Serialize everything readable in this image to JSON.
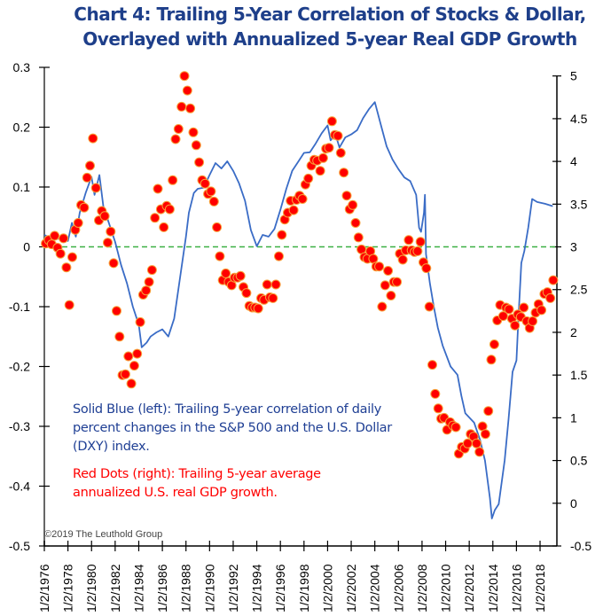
{
  "chart_data": {
    "type": "line+scatter (dual axis)",
    "title": [
      "Chart 4: Trailing 5-Year Correlation of Stocks & Dollar,",
      "Overlayed with Annualized 5-year Real GDP Growth"
    ],
    "annotations": {
      "blue_note": "Solid Blue (left): Trailing 5-year correlation of daily percent changes in the S&P 500 and the U.S. Dollar (DXY) index.",
      "red_note": "Red Dots (right): Trailing 5-year average annualized U.S. real GDP growth.",
      "copyright": "©2019 The Leuthold Group"
    },
    "x_ticks": [
      "1/2/1976",
      "1/2/1978",
      "1/2/1980",
      "1/2/1982",
      "1/2/1984",
      "1/2/1986",
      "1/2/1988",
      "1/2/1990",
      "1/2/1992",
      "1/2/1994",
      "1/2/1996",
      "1/2/1998",
      "1/2/2000",
      "1/2/2002",
      "1/2/2004",
      "1/2/2006",
      "1/2/2008",
      "1/2/2010",
      "1/2/2012",
      "1/2/2014",
      "1/2/2016",
      "1/2/2018"
    ],
    "y_left": {
      "ylim": [
        -0.5,
        0.3
      ],
      "ticks": [
        "0.3",
        "0.2",
        "0.1",
        "0",
        "-0.1",
        "-0.2",
        "-0.3",
        "-0.4",
        "-0.5"
      ]
    },
    "y_right": {
      "ylim": [
        -0.5,
        5
      ],
      "ticks": [
        "5",
        "4.5",
        "4",
        "3.5",
        "3",
        "2.5",
        "2",
        "1.5",
        "1",
        "0.5",
        "0",
        "-0.5"
      ]
    },
    "reference_line": {
      "axis": "left",
      "value": 0,
      "style": "dashed",
      "color": "#3cb043"
    },
    "colors": {
      "line": "#3a6cc6",
      "dots": "#ff0000",
      "dot_edge": "#f7a23a",
      "title": "#1e3f8a"
    },
    "series": [
      {
        "axis": "left",
        "kind": "line",
        "points": [
          [
            "1976-01",
            0.02
          ],
          [
            "1976-07",
            0.015
          ],
          [
            "1977-01",
            0.013
          ],
          [
            "1977-07",
            0.015
          ],
          [
            "1978-01",
            0.01
          ],
          [
            "1978-05",
            0.04
          ],
          [
            "1978-09",
            0.017
          ],
          [
            "1979-01",
            0.057
          ],
          [
            "1979-07",
            0.09
          ],
          [
            "1980-01",
            0.117
          ],
          [
            "1980-04",
            0.087
          ],
          [
            "1980-09",
            0.12
          ],
          [
            "1981-01",
            0.068
          ],
          [
            "1981-07",
            0.038
          ],
          [
            "1982-01",
            0.008
          ],
          [
            "1982-07",
            -0.03
          ],
          [
            "1983-01",
            -0.061
          ],
          [
            "1983-07",
            -0.1
          ],
          [
            "1984-01",
            -0.13
          ],
          [
            "1984-04",
            -0.168
          ],
          [
            "1984-09",
            -0.16
          ],
          [
            "1985-01",
            -0.15
          ],
          [
            "1985-07",
            -0.143
          ],
          [
            "1986-01",
            -0.138
          ],
          [
            "1986-07",
            -0.15
          ],
          [
            "1987-01",
            -0.12
          ],
          [
            "1987-07",
            -0.051
          ],
          [
            "1988-01",
            0.017
          ],
          [
            "1988-04",
            0.057
          ],
          [
            "1988-09",
            0.09
          ],
          [
            "1989-01",
            0.097
          ],
          [
            "1989-07",
            0.099
          ],
          [
            "1990-01",
            0.12
          ],
          [
            "1990-07",
            0.14
          ],
          [
            "1991-01",
            0.131
          ],
          [
            "1991-07",
            0.143
          ],
          [
            "1992-01",
            0.127
          ],
          [
            "1992-07",
            0.106
          ],
          [
            "1993-01",
            0.077
          ],
          [
            "1993-07",
            0.028
          ],
          [
            "1994-01",
            0.001
          ],
          [
            "1994-07",
            0.02
          ],
          [
            "1995-01",
            0.017
          ],
          [
            "1995-07",
            0.03
          ],
          [
            "1996-01",
            0.062
          ],
          [
            "1996-07",
            0.097
          ],
          [
            "1997-01",
            0.127
          ],
          [
            "1997-07",
            0.142
          ],
          [
            "1998-01",
            0.157
          ],
          [
            "1998-07",
            0.158
          ],
          [
            "1999-01",
            0.173
          ],
          [
            "1999-07",
            0.19
          ],
          [
            "2000-01",
            0.203
          ],
          [
            "2000-04",
            0.178
          ],
          [
            "2000-09",
            0.188
          ],
          [
            "2001-01",
            0.166
          ],
          [
            "2001-07",
            0.183
          ],
          [
            "2002-01",
            0.188
          ],
          [
            "2002-07",
            0.195
          ],
          [
            "2003-01",
            0.215
          ],
          [
            "2003-07",
            0.23
          ],
          [
            "2004-01",
            0.242
          ],
          [
            "2004-07",
            0.205
          ],
          [
            "2005-01",
            0.168
          ],
          [
            "2005-07",
            0.146
          ],
          [
            "2006-01",
            0.13
          ],
          [
            "2006-07",
            0.116
          ],
          [
            "2007-01",
            0.11
          ],
          [
            "2007-07",
            0.087
          ],
          [
            "2007-10",
            0.032
          ],
          [
            "2007-12",
            0.025
          ],
          [
            "2008-03",
            0.057
          ],
          [
            "2008-04",
            0.087
          ],
          [
            "2008-05",
            -0.012
          ],
          [
            "2008-09",
            -0.061
          ],
          [
            "2009-01",
            -0.1
          ],
          [
            "2009-05",
            -0.135
          ],
          [
            "2009-10",
            -0.165
          ],
          [
            "2010-06",
            -0.2
          ],
          [
            "2011-01",
            -0.214
          ],
          [
            "2011-05",
            -0.249
          ],
          [
            "2011-09",
            -0.278
          ],
          [
            "2012-06",
            -0.294
          ],
          [
            "2012-12",
            -0.323
          ],
          [
            "2013-05",
            -0.357
          ],
          [
            "2013-10",
            -0.42
          ],
          [
            "2013-12",
            -0.454
          ],
          [
            "2014-03",
            -0.44
          ],
          [
            "2014-07",
            -0.43
          ],
          [
            "2015-01",
            -0.357
          ],
          [
            "2015-05",
            -0.288
          ],
          [
            "2015-09",
            -0.209
          ],
          [
            "2016-01",
            -0.19
          ],
          [
            "2016-03",
            -0.12
          ],
          [
            "2016-06",
            -0.027
          ],
          [
            "2016-09",
            -0.007
          ],
          [
            "2017-01",
            0.032
          ],
          [
            "2017-05",
            0.08
          ],
          [
            "2017-10",
            0.075
          ],
          [
            "2018-06",
            0.072
          ],
          [
            "2019-02",
            0.068
          ]
        ]
      },
      {
        "axis": "right",
        "kind": "scatter",
        "start": "1976-Q1",
        "frequency": "quarterly",
        "values": [
          3.04,
          3.08,
          3.03,
          3.13,
          2.99,
          2.92,
          3.1,
          2.76,
          2.32,
          2.88,
          3.2,
          3.28,
          3.49,
          3.46,
          3.81,
          3.95,
          4.27,
          3.69,
          3.31,
          3.42,
          3.36,
          3.05,
          3.18,
          2.81,
          2.25,
          1.95,
          1.5,
          1.51,
          1.72,
          1.4,
          1.61,
          1.75,
          2.12,
          2.44,
          2.49,
          2.59,
          2.73,
          3.34,
          3.68,
          3.44,
          3.23,
          3.48,
          3.44,
          3.78,
          4.26,
          4.38,
          4.64,
          5.0,
          4.83,
          4.62,
          4.34,
          4.19,
          3.99,
          3.78,
          3.74,
          3.62,
          3.65,
          3.53,
          3.23,
          2.89,
          2.61,
          2.69,
          2.59,
          2.55,
          2.64,
          2.64,
          2.66,
          2.53,
          2.46,
          2.31,
          2.29,
          2.29,
          2.28,
          2.4,
          2.38,
          2.56,
          2.41,
          2.4,
          2.56,
          2.89,
          3.14,
          3.32,
          3.4,
          3.54,
          3.43,
          3.55,
          3.6,
          3.56,
          3.73,
          3.8,
          3.95,
          4.02,
          4.01,
          3.89,
          4.04,
          4.15,
          4.16,
          4.47,
          4.31,
          4.3,
          4.1,
          3.87,
          3.6,
          3.44,
          3.49,
          3.28,
          3.11,
          2.97,
          2.88,
          2.86,
          2.95,
          2.86,
          2.77,
          2.77,
          2.3,
          2.55,
          2.72,
          2.43,
          2.59,
          2.59,
          2.92,
          2.85,
          2.96,
          3.08,
          2.96,
          2.94,
          2.95,
          3.06,
          2.82,
          2.75,
          2.3,
          1.62,
          1.28,
          1.11,
          0.99,
          1.0,
          0.86,
          0.95,
          0.91,
          0.89,
          0.58,
          0.66,
          0.64,
          0.7,
          0.81,
          0.78,
          0.7,
          0.6,
          0.9,
          0.81,
          1.08,
          1.68,
          1.86,
          2.14,
          2.32,
          2.19,
          2.29,
          2.27,
          2.16,
          2.08,
          2.21,
          2.18,
          2.29,
          2.13,
          2.05,
          2.13,
          2.23,
          2.33,
          2.26,
          2.45,
          2.47,
          2.4,
          2.61
        ]
      }
    ]
  }
}
